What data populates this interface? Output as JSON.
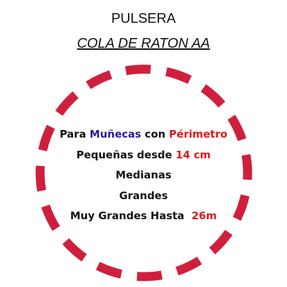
{
  "header": {
    "title": "PULSERA",
    "subtitle": "COLA DE RATON AA"
  },
  "body": {
    "lines": [
      {
        "segments": [
          {
            "text": "Para ",
            "color": "#111111"
          },
          {
            "text": "Muñecas",
            "color": "#2b1aa0"
          },
          {
            "text": " con ",
            "color": "#111111"
          },
          {
            "text": "Périmetro",
            "color": "#e01a1a"
          }
        ]
      },
      {
        "segments": [
          {
            "text": "Pequeñas desde ",
            "color": "#111111"
          },
          {
            "text": "14 cm",
            "color": "#e01a1a"
          }
        ]
      },
      {
        "segments": [
          {
            "text": "Medianas",
            "color": "#111111"
          }
        ]
      },
      {
        "segments": [
          {
            "text": "Grandes",
            "color": "#111111"
          }
        ]
      },
      {
        "segments": [
          {
            "text": "Muy Grandes Hasta  ",
            "color": "#111111"
          },
          {
            "text": "26m",
            "color": "#e01a1a"
          }
        ]
      }
    ]
  },
  "frame": {
    "color": "#d01f3c"
  }
}
